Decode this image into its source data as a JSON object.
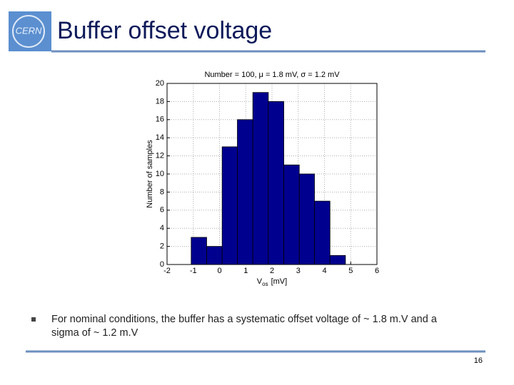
{
  "header": {
    "logo": "CERN",
    "title": "Buffer offset voltage"
  },
  "chart_data": {
    "type": "histogram",
    "title": "Number = 100, μ = 1.8 mV, σ = 1.2 mV",
    "xlabel": [
      "V",
      "os",
      "[mV]"
    ],
    "ylabel": "Number of samples",
    "bins": [
      -1.08,
      -0.49,
      0.1,
      0.68,
      1.27,
      1.86,
      2.45,
      3.04,
      3.62,
      4.21,
      4.8
    ],
    "values": [
      3,
      2,
      13,
      16,
      19,
      18,
      11,
      10,
      7,
      1
    ],
    "color": "#00008f",
    "xlim": [
      -2,
      6
    ],
    "xticks": [
      -2,
      -1,
      0,
      1,
      2,
      3,
      4,
      5,
      6
    ],
    "ylim": [
      0,
      20
    ],
    "yticks": [
      0,
      2,
      4,
      6,
      8,
      10,
      12,
      14,
      16,
      18,
      20
    ],
    "grid": true
  },
  "body": {
    "bullet": [
      "For nominal conditions, the buffer has a systematic offset voltage of ~ 1.8 m.V and a",
      "sigma of ~ 1.2 m.V"
    ]
  },
  "footer": {
    "page": "16"
  }
}
